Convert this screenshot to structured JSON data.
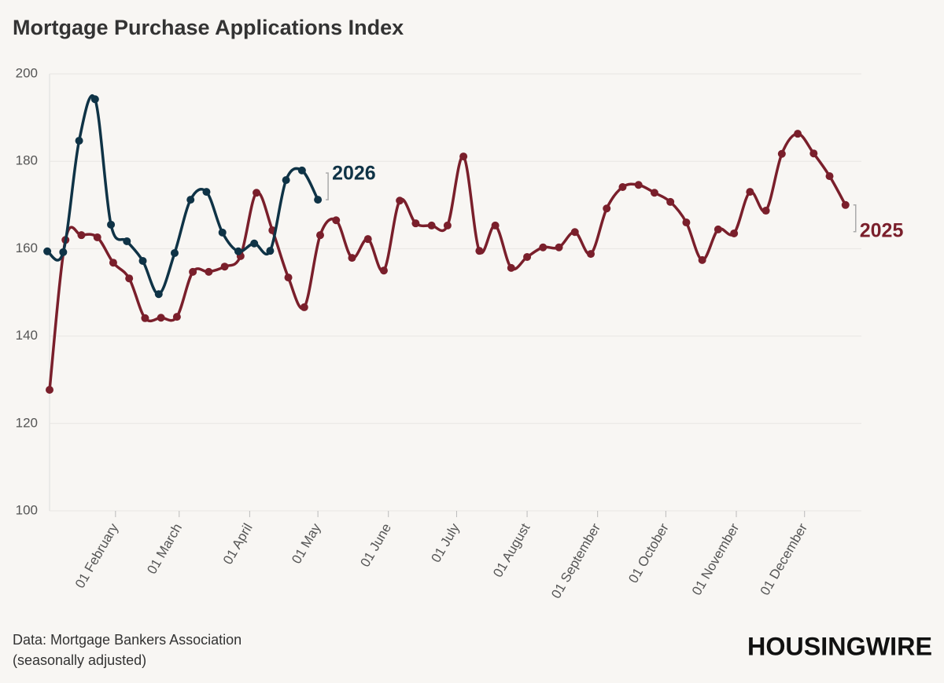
{
  "chart_data": {
    "type": "line",
    "title": "Mortgage Purchase Applications Index",
    "source": [
      "Data: Mortgage Bankers Association",
      "(seasonally adjusted)"
    ],
    "brand": "HOUSINGWIRE",
    "xlim": [
      "03 January",
      "26 December"
    ],
    "xticks": [
      "01 February",
      "01 March",
      "01 April",
      "01 May",
      "01 June",
      "01 July",
      "01 August",
      "01 September",
      "01 October",
      "01 November",
      "01 December"
    ],
    "ylim": [
      100,
      200
    ],
    "yticks": [
      100,
      120,
      140,
      160,
      180,
      200
    ],
    "grid": true,
    "series": [
      {
        "name": "2025",
        "color": "#7a1f2b",
        "x": [
          "03 January",
          "10 January",
          "17 January",
          "24 January",
          "31 January",
          "07 February",
          "14 February",
          "21 February",
          "28 February",
          "07 March",
          "14 March",
          "21 March",
          "28 March",
          "04 April",
          "11 April",
          "18 April",
          "25 April",
          "02 May",
          "09 May",
          "16 May",
          "23 May",
          "30 May",
          "06 June",
          "13 June",
          "20 June",
          "27 June",
          "04 July",
          "11 July",
          "18 July",
          "25 July",
          "01 August",
          "08 August",
          "15 August",
          "22 August",
          "29 August",
          "05 September",
          "12 September",
          "19 September",
          "26 September",
          "03 October",
          "10 October",
          "17 October",
          "24 October",
          "31 October",
          "07 November",
          "14 November",
          "21 November",
          "28 November",
          "05 December",
          "12 December",
          "19 December"
        ],
        "values": [
          127.7,
          162.0,
          163.1,
          162.6,
          156.8,
          153.2,
          144.1,
          144.2,
          144.4,
          154.7,
          154.7,
          155.9,
          158.3,
          172.8,
          164.2,
          153.4,
          146.6,
          163.1,
          166.5,
          157.9,
          162.2,
          155.0,
          171.0,
          165.8,
          165.3,
          165.3,
          181.1,
          159.5,
          165.3,
          155.6,
          158.1,
          160.3,
          160.3,
          163.8,
          158.8,
          169.2,
          174.1,
          174.6,
          172.8,
          170.7,
          166.0,
          157.4,
          164.4,
          163.5,
          173.0,
          168.7,
          181.7,
          186.3,
          181.8,
          176.6,
          170.0
        ]
      },
      {
        "name": "2026",
        "color": "#0f3346",
        "x": [
          "02 January",
          "09 January",
          "16 January",
          "23 January",
          "30 January",
          "06 February",
          "13 February",
          "20 February",
          "27 February",
          "06 March",
          "13 March",
          "20 March",
          "27 March",
          "03 April",
          "10 April",
          "17 April",
          "24 April",
          "01 May"
        ],
        "values": [
          159.4,
          159.2,
          184.7,
          194.2,
          165.5,
          161.7,
          157.2,
          149.6,
          159.0,
          171.2,
          173.0,
          163.7,
          159.4,
          161.2,
          159.5,
          175.7,
          177.9,
          171.2
        ]
      }
    ]
  }
}
